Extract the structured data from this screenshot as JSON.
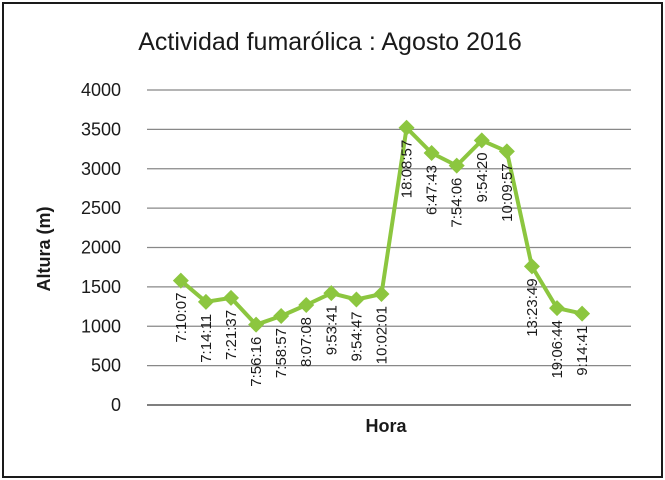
{
  "chart_data": {
    "type": "line",
    "title": "Actividad fumarólica  : Agosto 2016",
    "xlabel": "Hora",
    "ylabel": "Altura  (m)",
    "ylim": [
      0,
      4000
    ],
    "yticks": [
      "0",
      "500",
      "1000",
      "1500",
      "2000",
      "2500",
      "3000",
      "3500",
      "4000"
    ],
    "grid": true,
    "legend": "none",
    "color": "#8cc63f",
    "points": [
      {
        "label": "7:10:07",
        "value": 1580
      },
      {
        "label": "7:14:11",
        "value": 1310
      },
      {
        "label": "7:21:37",
        "value": 1360
      },
      {
        "label": "7:56:16",
        "value": 1020
      },
      {
        "label": "7:58:57",
        "value": 1130
      },
      {
        "label": "8:07:08",
        "value": 1270
      },
      {
        "label": "9:53:41",
        "value": 1420
      },
      {
        "label": "9:54:47",
        "value": 1340
      },
      {
        "label": "10:02:01",
        "value": 1410
      },
      {
        "label": "18:08:57",
        "value": 3520
      },
      {
        "label": "6:47:43",
        "value": 3200
      },
      {
        "label": "7:54:06",
        "value": 3040
      },
      {
        "label": "9:54:20",
        "value": 3360
      },
      {
        "label": "10:09:57",
        "value": 3220
      },
      {
        "label": "13:23:49",
        "value": 1760
      },
      {
        "label": "19:06:44",
        "value": 1230
      },
      {
        "label": "9:14:41",
        "value": 1160
      }
    ]
  }
}
